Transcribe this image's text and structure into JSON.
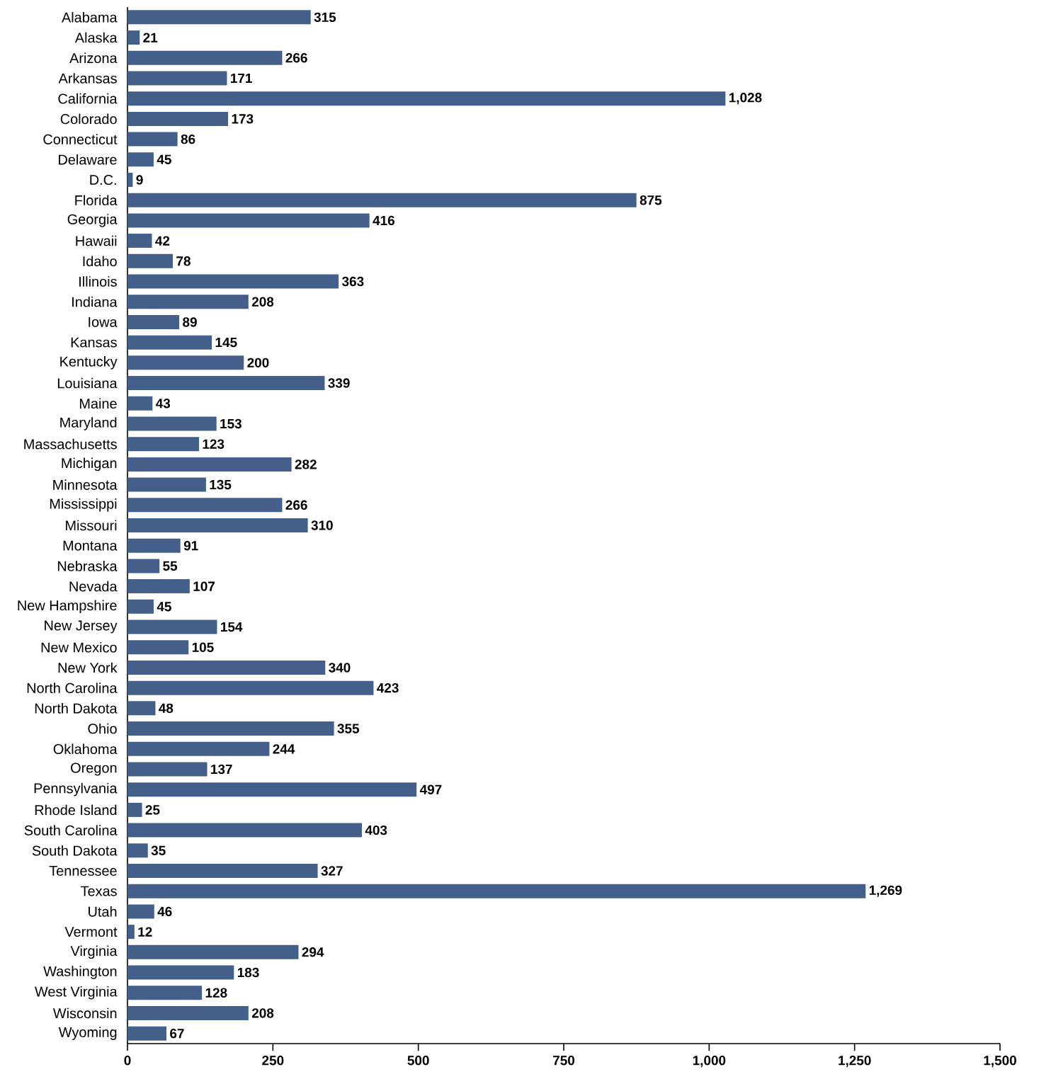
{
  "chart_data": {
    "type": "bar",
    "orientation": "horizontal",
    "color": "#44608a",
    "categories": [
      "Alabama",
      "Alaska",
      "Arizona",
      "Arkansas",
      "California",
      "Colorado",
      "Connecticut",
      "Delaware",
      "D.C.",
      "Florida",
      "Georgia",
      "Hawaii",
      "Idaho",
      "Illinois",
      "Indiana",
      "Iowa",
      "Kansas",
      "Kentucky",
      "Louisiana",
      "Maine",
      "Maryland",
      "Massachusetts",
      "Michigan",
      "Minnesota",
      "Mississippi",
      "Missouri",
      "Montana",
      "Nebraska",
      "Nevada",
      "New Hampshire",
      "New Jersey",
      "New Mexico",
      "New York",
      "North Carolina",
      "North Dakota",
      "Ohio",
      "Oklahoma",
      "Oregon",
      "Pennsylvania",
      "Rhode Island",
      "South Carolina",
      "South Dakota",
      "Tennessee",
      "Texas",
      "Utah",
      "Vermont",
      "Virginia",
      "Washington",
      "West Virginia",
      "Wisconsin",
      "Wyoming"
    ],
    "values": [
      315,
      21,
      266,
      171,
      1028,
      173,
      86,
      45,
      9,
      875,
      416,
      42,
      78,
      363,
      208,
      89,
      145,
      200,
      339,
      43,
      153,
      123,
      282,
      135,
      266,
      310,
      91,
      55,
      107,
      45,
      154,
      105,
      340,
      423,
      48,
      355,
      244,
      137,
      497,
      25,
      403,
      35,
      327,
      1269,
      46,
      12,
      294,
      183,
      128,
      208,
      67
    ],
    "value_labels": [
      "315",
      "21",
      "266",
      "171",
      "1,028",
      "173",
      "86",
      "45",
      "9",
      "875",
      "416",
      "42",
      "78",
      "363",
      "208",
      "89",
      "145",
      "200",
      "339",
      "43",
      "153",
      "123",
      "282",
      "135",
      "266",
      "310",
      "91",
      "55",
      "107",
      "45",
      "154",
      "105",
      "340",
      "423",
      "48",
      "355",
      "244",
      "137",
      "497",
      "25",
      "403",
      "35",
      "327",
      "1,269",
      "46",
      "12",
      "294",
      "183",
      "128",
      "208",
      "67"
    ],
    "xlim": [
      0,
      1500
    ],
    "xticks": [
      0,
      250,
      500,
      750,
      {
        "value": 1000,
        "label": "1,000"
      },
      {
        "value": 1250,
        "label": "1,250"
      },
      {
        "value": 1500,
        "label": "1,500"
      }
    ]
  }
}
